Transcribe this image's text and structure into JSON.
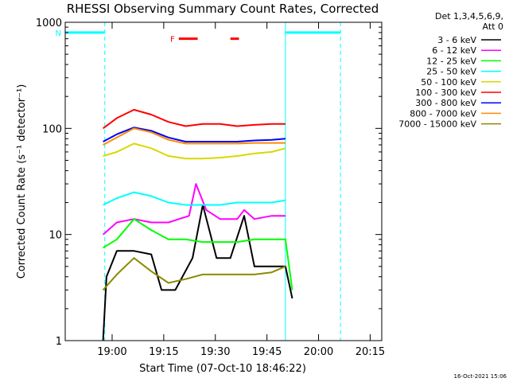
{
  "chart_data": {
    "type": "line",
    "title": "RHESSI Observing Summary Count Rates, Corrected",
    "xlabel": "Start Time (07-Oct-10 18:46:22)",
    "ylabel": "Corrected Count Rate (s⁻¹ detector⁻¹)",
    "yscale": "log",
    "ylim": [
      1,
      1000
    ],
    "xlim_minutes_after_start": [
      0,
      92
    ],
    "x_ticks": [
      "19:00",
      "19:15",
      "19:30",
      "19:45",
      "20:00",
      "20:15"
    ],
    "y_ticks": [
      "1",
      "10",
      "100",
      "1000"
    ],
    "grid": false,
    "legend": {
      "position": "top-right",
      "header": [
        "Det 1,3,4,5,6,9,",
        "Att 0"
      ],
      "entries": [
        {
          "label": "3 - 6 keV",
          "color": "#000000"
        },
        {
          "label": "6 - 12 keV",
          "color": "#ff00ff"
        },
        {
          "label": "12 - 25 keV",
          "color": "#00ff00"
        },
        {
          "label": "25 - 50 keV",
          "color": "#00ffff"
        },
        {
          "label": "50 - 100 keV",
          "color": "#d8d800"
        },
        {
          "label": "100 - 300 keV",
          "color": "#ff0000"
        },
        {
          "label": "300 - 800 keV",
          "color": "#0000ff"
        },
        {
          "label": "800 - 7000 keV",
          "color": "#ff8c00"
        },
        {
          "label": "7000 - 15000 keV",
          "color": "#8b8b00"
        }
      ]
    },
    "series": [
      {
        "name": "3 - 6 keV",
        "color": "#000000",
        "x": [
          11,
          12,
          15,
          20,
          25,
          28,
          32,
          37,
          40,
          44,
          48,
          52,
          55,
          58,
          64,
          66
        ],
        "y": [
          1,
          4,
          7,
          7,
          6.5,
          3,
          3,
          6,
          19,
          6,
          6,
          15,
          5,
          5,
          5,
          2.5
        ]
      },
      {
        "name": "6 - 12 keV",
        "color": "#ff00ff",
        "x": [
          11,
          15,
          20,
          25,
          30,
          36,
          38,
          41,
          45,
          50,
          52,
          55,
          60,
          64
        ],
        "y": [
          10,
          13,
          14,
          13,
          13,
          15,
          30,
          17,
          14,
          14,
          17,
          14,
          15,
          15
        ]
      },
      {
        "name": "12 - 25 keV",
        "color": "#00ff00",
        "x": [
          11,
          15,
          20,
          25,
          30,
          35,
          40,
          45,
          50,
          55,
          60,
          64,
          66
        ],
        "y": [
          7.5,
          9,
          14,
          11,
          9,
          9,
          8.5,
          8.5,
          8.5,
          9,
          9,
          9,
          3
        ]
      },
      {
        "name": "25 - 50 keV",
        "color": "#00ffff",
        "x": [
          11,
          15,
          20,
          25,
          30,
          35,
          40,
          45,
          50,
          55,
          60,
          64
        ],
        "y": [
          19,
          22,
          25,
          23,
          20,
          19,
          19,
          19,
          20,
          20,
          20,
          21
        ]
      },
      {
        "name": "50 - 100 keV",
        "color": "#d8d800",
        "x": [
          11,
          15,
          20,
          25,
          30,
          35,
          40,
          45,
          50,
          55,
          60,
          64
        ],
        "y": [
          55,
          60,
          72,
          65,
          55,
          52,
          52,
          53,
          55,
          58,
          60,
          65
        ]
      },
      {
        "name": "100 - 300 keV",
        "color": "#ff0000",
        "x": [
          11,
          15,
          20,
          25,
          30,
          35,
          40,
          45,
          50,
          55,
          60,
          64
        ],
        "y": [
          100,
          125,
          150,
          135,
          115,
          105,
          110,
          110,
          105,
          108,
          110,
          110
        ]
      },
      {
        "name": "300 - 800 keV",
        "color": "#0000ff",
        "x": [
          11,
          15,
          20,
          25,
          30,
          35,
          40,
          45,
          50,
          55,
          60,
          64
        ],
        "y": [
          75,
          88,
          102,
          95,
          82,
          75,
          75,
          75,
          75,
          77,
          78,
          80
        ]
      },
      {
        "name": "800 - 7000 keV",
        "color": "#ff8c00",
        "x": [
          11,
          15,
          20,
          25,
          30,
          35,
          40,
          45,
          50,
          55,
          60,
          64
        ],
        "y": [
          70,
          82,
          100,
          92,
          78,
          72,
          72,
          72,
          72,
          73,
          73,
          73
        ]
      },
      {
        "name": "7000 - 15000 keV",
        "color": "#8b8b00",
        "x": [
          11,
          15,
          20,
          25,
          30,
          35,
          40,
          45,
          50,
          55,
          60,
          64
        ],
        "y": [
          3,
          4.2,
          6,
          4.5,
          3.5,
          3.8,
          4.2,
          4.2,
          4.2,
          4.2,
          4.4,
          5
        ]
      }
    ],
    "annotations": [
      {
        "label": "N",
        "color": "#00ffff",
        "x_range_minutes": [
          0,
          11.5
        ],
        "y": 800
      },
      {
        "label": "",
        "color": "#00ffff",
        "x_range_minutes": [
          64,
          80
        ],
        "y": 800
      },
      {
        "label": "F",
        "color": "#ff0000",
        "x_range_minutes": [
          33,
          38.5
        ],
        "y": 700
      },
      {
        "label": "",
        "color": "#ff0000",
        "x_range_minutes": [
          48,
          50.5
        ],
        "y": 700
      }
    ],
    "vertical_markers_minutes": [
      {
        "x": 0,
        "style": "solid",
        "color": "#00ffff"
      },
      {
        "x": 11.5,
        "style": "dashed",
        "color": "#00ffff"
      },
      {
        "x": 64,
        "style": "solid",
        "color": "#00ffff"
      },
      {
        "x": 80,
        "style": "dashed",
        "color": "#00ffff"
      }
    ]
  },
  "footer_timestamp": "16-Oct-2021 15:06"
}
